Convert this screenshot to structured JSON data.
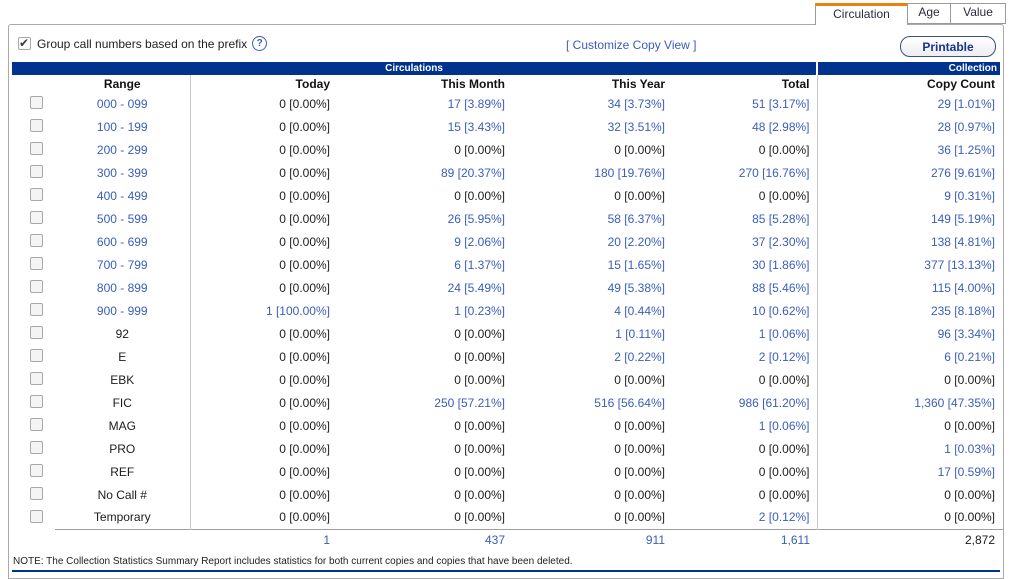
{
  "tabs": [
    {
      "label": "Circulation",
      "active": true
    },
    {
      "label": "Age",
      "active": false
    },
    {
      "label": "Value",
      "active": false
    }
  ],
  "controls": {
    "group_checkbox_label": "Group call numbers based on the prefix",
    "group_checkbox_checked": true,
    "help_icon": "question-mark-circle-icon",
    "customize_link": "[ Customize Copy View ]",
    "printable_button": "Printable"
  },
  "table": {
    "section_headers": {
      "circulations": "Circulations",
      "collection": "Collection"
    },
    "columns": [
      "Range",
      "Today",
      "This Month",
      "This Year",
      "Total",
      "Copy Count"
    ],
    "rows": [
      {
        "label": "000 - 099",
        "label_is_link": true,
        "today": "0 [0.00%]",
        "this_month": "17 [3.89%]",
        "this_year": "34 [3.73%]",
        "total": "51 [3.17%]",
        "copy_count": "29 [1.01%]"
      },
      {
        "label": "100 - 199",
        "label_is_link": true,
        "today": "0 [0.00%]",
        "this_month": "15 [3.43%]",
        "this_year": "32 [3.51%]",
        "total": "48 [2.98%]",
        "copy_count": "28 [0.97%]"
      },
      {
        "label": "200 - 299",
        "label_is_link": true,
        "today": "0 [0.00%]",
        "this_month": "0 [0.00%]",
        "this_year": "0 [0.00%]",
        "total": "0 [0.00%]",
        "copy_count": "36 [1.25%]"
      },
      {
        "label": "300 - 399",
        "label_is_link": true,
        "today": "0 [0.00%]",
        "this_month": "89 [20.37%]",
        "this_year": "180 [19.76%]",
        "total": "270 [16.76%]",
        "copy_count": "276 [9.61%]"
      },
      {
        "label": "400 - 499",
        "label_is_link": true,
        "today": "0 [0.00%]",
        "this_month": "0 [0.00%]",
        "this_year": "0 [0.00%]",
        "total": "0 [0.00%]",
        "copy_count": "9 [0.31%]"
      },
      {
        "label": "500 - 599",
        "label_is_link": true,
        "today": "0 [0.00%]",
        "this_month": "26 [5.95%]",
        "this_year": "58 [6.37%]",
        "total": "85 [5.28%]",
        "copy_count": "149 [5.19%]"
      },
      {
        "label": "600 - 699",
        "label_is_link": true,
        "today": "0 [0.00%]",
        "this_month": "9 [2.06%]",
        "this_year": "20 [2.20%]",
        "total": "37 [2.30%]",
        "copy_count": "138 [4.81%]"
      },
      {
        "label": "700 - 799",
        "label_is_link": true,
        "today": "0 [0.00%]",
        "this_month": "6 [1.37%]",
        "this_year": "15 [1.65%]",
        "total": "30 [1.86%]",
        "copy_count": "377 [13.13%]"
      },
      {
        "label": "800 - 899",
        "label_is_link": true,
        "today": "0 [0.00%]",
        "this_month": "24 [5.49%]",
        "this_year": "49 [5.38%]",
        "total": "88 [5.46%]",
        "copy_count": "115 [4.00%]"
      },
      {
        "label": "900 - 999",
        "label_is_link": true,
        "today": "1 [100.00%]",
        "this_month": "1 [0.23%]",
        "this_year": "4 [0.44%]",
        "total": "10 [0.62%]",
        "copy_count": "235 [8.18%]"
      },
      {
        "label": "92",
        "label_is_link": false,
        "today": "0 [0.00%]",
        "this_month": "0 [0.00%]",
        "this_year": "1 [0.11%]",
        "total": "1 [0.06%]",
        "copy_count": "96 [3.34%]"
      },
      {
        "label": "E",
        "label_is_link": false,
        "today": "0 [0.00%]",
        "this_month": "0 [0.00%]",
        "this_year": "2 [0.22%]",
        "total": "2 [0.12%]",
        "copy_count": "6 [0.21%]"
      },
      {
        "label": "EBK",
        "label_is_link": false,
        "today": "0 [0.00%]",
        "this_month": "0 [0.00%]",
        "this_year": "0 [0.00%]",
        "total": "0 [0.00%]",
        "copy_count": "0 [0.00%]"
      },
      {
        "label": "FIC",
        "label_is_link": false,
        "today": "0 [0.00%]",
        "this_month": "250 [57.21%]",
        "this_year": "516 [56.64%]",
        "total": "986 [61.20%]",
        "copy_count": "1,360 [47.35%]"
      },
      {
        "label": "MAG",
        "label_is_link": false,
        "today": "0 [0.00%]",
        "this_month": "0 [0.00%]",
        "this_year": "0 [0.00%]",
        "total": "1 [0.06%]",
        "copy_count": "0 [0.00%]"
      },
      {
        "label": "PRO",
        "label_is_link": false,
        "today": "0 [0.00%]",
        "this_month": "0 [0.00%]",
        "this_year": "0 [0.00%]",
        "total": "0 [0.00%]",
        "copy_count": "1 [0.03%]"
      },
      {
        "label": "REF",
        "label_is_link": false,
        "today": "0 [0.00%]",
        "this_month": "0 [0.00%]",
        "this_year": "0 [0.00%]",
        "total": "0 [0.00%]",
        "copy_count": "17 [0.59%]"
      },
      {
        "label": "No Call #",
        "label_is_link": false,
        "today": "0 [0.00%]",
        "this_month": "0 [0.00%]",
        "this_year": "0 [0.00%]",
        "total": "0 [0.00%]",
        "copy_count": "0 [0.00%]"
      },
      {
        "label": "Temporary",
        "label_is_link": false,
        "today": "0 [0.00%]",
        "this_month": "0 [0.00%]",
        "this_year": "0 [0.00%]",
        "total": "2 [0.12%]",
        "copy_count": "0 [0.00%]"
      }
    ],
    "totals": {
      "today": "1",
      "this_month": "437",
      "this_year": "911",
      "total": "1,611",
      "copy_count": "2,872"
    },
    "note": "NOTE: The Collection Statistics Summary Report includes statistics for both current copies and copies that have been deleted."
  },
  "colors": {
    "header_bar": "#00338e",
    "link": "#3a5dba",
    "tab_accent": "#e8820c"
  }
}
